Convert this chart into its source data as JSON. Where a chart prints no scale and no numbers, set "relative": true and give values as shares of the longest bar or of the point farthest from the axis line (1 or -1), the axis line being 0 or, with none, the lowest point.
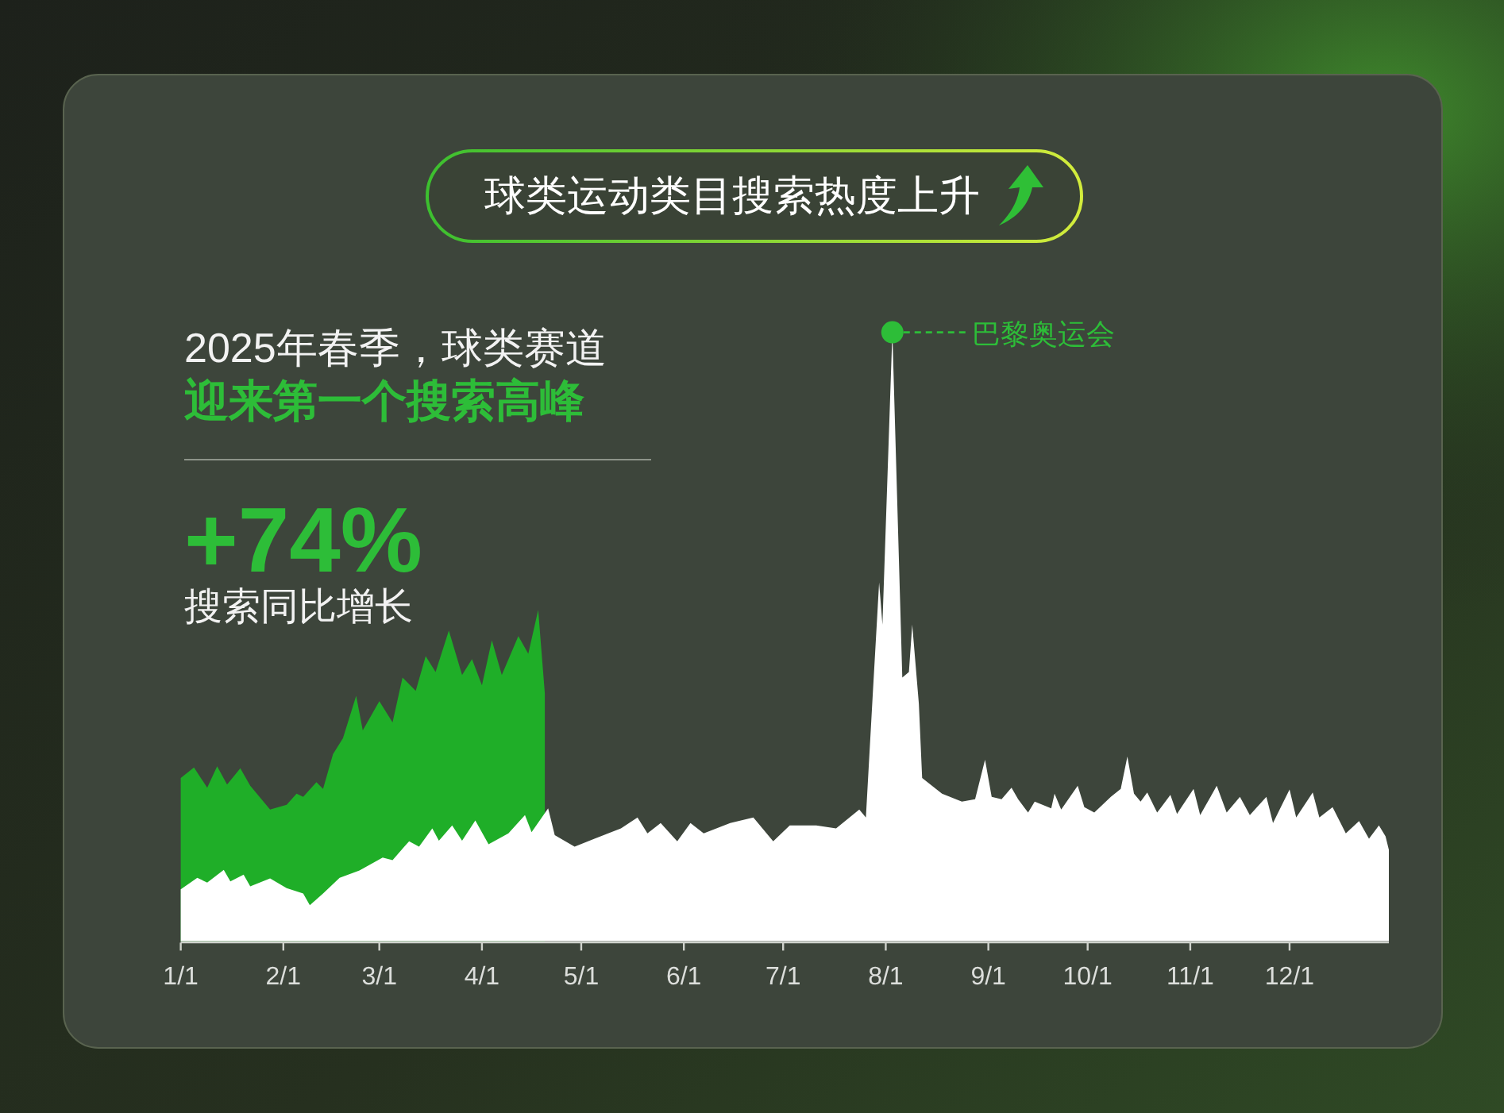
{
  "chart_data": {
    "type": "area",
    "title": "球类运动类目搜索热度上升",
    "relative": true,
    "xlim": [
      "--01-01",
      "--12-31"
    ],
    "xticks": [
      {
        "value": "--01-01",
        "label": "1/1"
      },
      {
        "value": "--02-01",
        "label": "2/1"
      },
      {
        "value": "--03-01",
        "label": "3/1"
      },
      {
        "value": "--04-01",
        "label": "4/1"
      },
      {
        "value": "--05-01",
        "label": "5/1"
      },
      {
        "value": "--06-01",
        "label": "6/1"
      },
      {
        "value": "--07-01",
        "label": "7/1"
      },
      {
        "value": "--08-01",
        "label": "8/1"
      },
      {
        "value": "--09-01",
        "label": "9/1"
      },
      {
        "value": "--10-01",
        "label": "10/1"
      },
      {
        "value": "--11-01",
        "label": "11/1"
      },
      {
        "value": "--12-01",
        "label": "12/1"
      }
    ],
    "series": [
      {
        "color": "#1fae28",
        "x": [
          "--01-01",
          "--01-05",
          "--01-09",
          "--01-12",
          "--01-15",
          "--01-19",
          "--01-22",
          "--01-28",
          "--02-02",
          "--02-05",
          "--02-07",
          "--02-11",
          "--02-13",
          "--02-16",
          "--02-19",
          "--02-23",
          "--02-25",
          "--03-01",
          "--03-05",
          "--03-08",
          "--03-12",
          "--03-15",
          "--03-18",
          "--03-22",
          "--03-26",
          "--03-29",
          "--04-01",
          "--04-04",
          "--04-07",
          "--04-12",
          "--04-15",
          "--04-18",
          "--04-20"
        ],
        "values": [
          0.268,
          0.285,
          0.252,
          0.287,
          0.257,
          0.284,
          0.255,
          0.216,
          0.224,
          0.242,
          0.237,
          0.261,
          0.25,
          0.307,
          0.333,
          0.403,
          0.346,
          0.394,
          0.359,
          0.433,
          0.411,
          0.468,
          0.442,
          0.51,
          0.437,
          0.463,
          0.42,
          0.494,
          0.437,
          0.501,
          0.472,
          0.544,
          0.407
        ]
      },
      {
        "color": "#ffffff",
        "x": [
          "--01-01",
          "--01-06",
          "--01-09",
          "--01-14",
          "--01-16",
          "--01-20",
          "--01-22",
          "--01-28",
          "--02-02",
          "--02-07",
          "--02-09",
          "--02-13",
          "--02-18",
          "--02-24",
          "--03-02",
          "--03-05",
          "--03-10",
          "--03-13",
          "--03-17",
          "--03-19",
          "--03-23",
          "--03-26",
          "--03-30",
          "--04-03",
          "--04-09",
          "--04-14",
          "--04-16",
          "--04-21",
          "--04-23",
          "--04-29",
          "--05-05",
          "--05-13",
          "--05-18",
          "--05-21",
          "--05-25",
          "--05-30",
          "--06-03",
          "--06-07",
          "--06-15",
          "--06-22",
          "--06-28",
          "--07-03",
          "--07-11",
          "--07-17",
          "--07-24",
          "--07-26",
          "--07-28",
          "--07-30",
          "--07-31",
          "--08-03",
          "--08-06",
          "--08-08",
          "--08-09",
          "--08-11",
          "--08-12",
          "--08-18",
          "--08-24",
          "--08-28",
          "--08-31",
          "--09-02",
          "--09-05",
          "--09-08",
          "--09-10",
          "--09-13",
          "--09-15",
          "--09-20",
          "--09-21",
          "--09-23",
          "--09-28",
          "--09-30",
          "--10-03",
          "--10-08",
          "--10-11",
          "--10-13",
          "--10-15",
          "--10-17",
          "--10-19",
          "--10-22",
          "--10-26",
          "--10-28",
          "--11-02",
          "--11-04",
          "--11-09",
          "--11-12",
          "--11-16",
          "--11-19",
          "--11-24",
          "--11-26",
          "--12-01",
          "--12-03",
          "--12-08",
          "--12-10",
          "--12-14",
          "--12-18",
          "--12-22",
          "--12-25",
          "--12-28",
          "--12-30",
          "--12-31"
        ],
        "values": [
          0.085,
          0.104,
          0.096,
          0.117,
          0.098,
          0.109,
          0.09,
          0.103,
          0.087,
          0.078,
          0.059,
          0.078,
          0.104,
          0.116,
          0.137,
          0.133,
          0.164,
          0.155,
          0.185,
          0.165,
          0.19,
          0.165,
          0.198,
          0.159,
          0.177,
          0.207,
          0.179,
          0.218,
          0.174,
          0.155,
          0.168,
          0.185,
          0.203,
          0.177,
          0.194,
          0.164,
          0.194,
          0.177,
          0.194,
          0.203,
          0.164,
          0.19,
          0.19,
          0.185,
          0.216,
          0.203,
          0.398,
          0.589,
          0.52,
          1,
          0.433,
          0.442,
          0.52,
          0.39,
          0.268,
          0.242,
          0.229,
          0.233,
          0.298,
          0.237,
          0.233,
          0.252,
          0.233,
          0.211,
          0.229,
          0.218,
          0.242,
          0.216,
          0.255,
          0.22,
          0.211,
          0.237,
          0.25,
          0.303,
          0.242,
          0.229,
          0.244,
          0.211,
          0.24,
          0.209,
          0.25,
          0.207,
          0.255,
          0.211,
          0.237,
          0.207,
          0.237,
          0.194,
          0.249,
          0.203,
          0.244,
          0.203,
          0.22,
          0.177,
          0.197,
          0.168,
          0.19,
          0.172,
          0.15
        ]
      }
    ],
    "annotations": [
      "2025年春季，球类赛道",
      "迎来第一个搜索高峰",
      "+74%",
      "搜索同比增长",
      {
        "text": "巴黎奥运会",
        "x": "--08-03",
        "y": 1
      }
    ]
  }
}
